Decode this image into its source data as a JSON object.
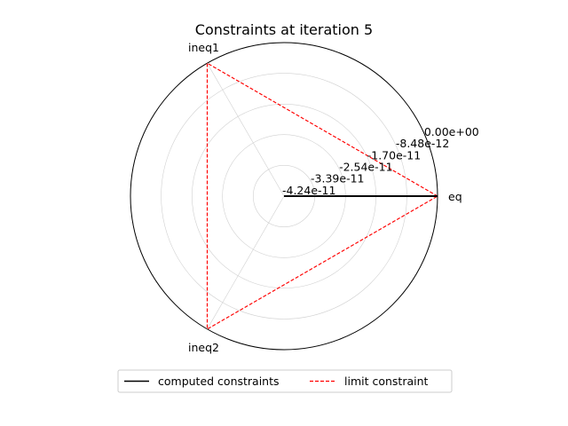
{
  "chart_data": {
    "type": "radar",
    "title": "Constraints at iteration 5",
    "categories": [
      "eq",
      "ineq1",
      "ineq2"
    ],
    "r_ticks": [
      "-4.24e-11",
      "-3.39e-11",
      "-2.54e-11",
      "-1.70e-11",
      "-8.48e-12",
      "0.00e+00"
    ],
    "rlim": [
      -4.24e-11,
      0.0
    ],
    "series": [
      {
        "name": "computed constraints",
        "values": [
          0.0,
          -4.24e-11,
          -4.24e-11
        ],
        "color": "#000000",
        "style": "solid"
      },
      {
        "name": "limit constraint",
        "values": [
          0.0,
          0.0,
          0.0
        ],
        "color": "#ff0000",
        "style": "dashed"
      }
    ],
    "grid": true,
    "legend_position": "bottom-center"
  }
}
